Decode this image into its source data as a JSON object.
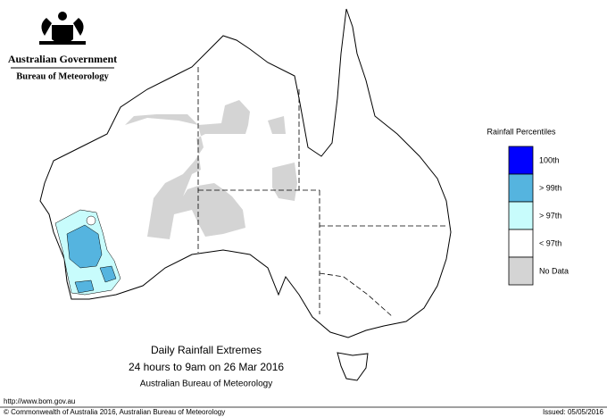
{
  "header": {
    "title": "Australian Government",
    "subtitle": "Bureau of Meteorology"
  },
  "legend": {
    "title": "Rainfall Percentiles",
    "items": [
      {
        "label": "100th",
        "color": "#0000ff"
      },
      {
        "label": "> 99th",
        "color": "#55b4df"
      },
      {
        "label": "> 97th",
        "color": "#c8fcfc"
      },
      {
        "label": "< 97th",
        "color": "#ffffff"
      },
      {
        "label": "No Data",
        "color": "#d4d4d4"
      }
    ]
  },
  "caption": {
    "line1": "Daily Rainfall Extremes",
    "line2": "24 hours to 9am on 26 Mar 2016",
    "line3": "Australian Bureau of Meteorology"
  },
  "footer": {
    "url": "http://www.bom.gov.au",
    "copyright": "© Commonwealth of Australia 2016, Australian Bureau of Meteorology",
    "issued": "Issued: 05/05/2016"
  }
}
